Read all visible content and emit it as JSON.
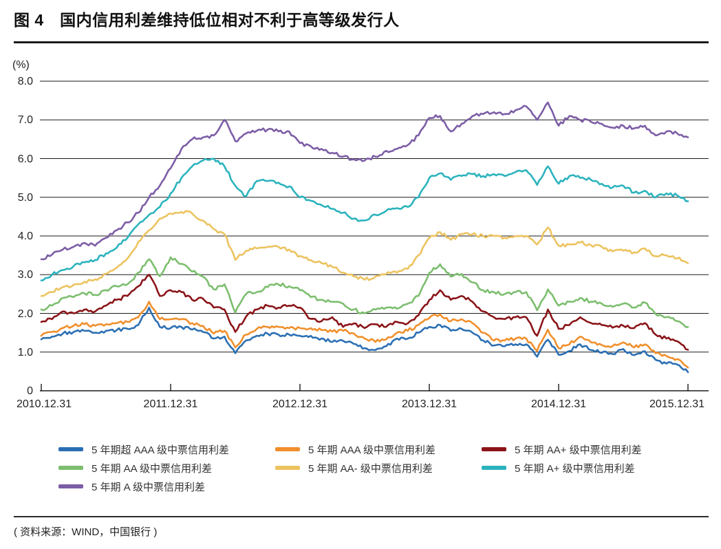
{
  "title": "图 4　国内信用利差维持低位相对不利于高等级发行人",
  "source": "( 资料来源：WIND，中国银行 )",
  "chart_data": {
    "type": "line",
    "title": "图 4　国内信用利差维持低位相对不利于高等级发行人",
    "ylabel": "(%)",
    "xlabel": "",
    "ylim": [
      0,
      8
    ],
    "grid": "horizontal",
    "legend_position": "bottom",
    "yticks": [
      "8.0",
      "7.0",
      "6.0",
      "5.0",
      "4.0",
      "3.0",
      "2.0",
      "1.0",
      "0"
    ],
    "ytick_values": [
      8,
      7,
      6,
      5,
      4,
      3,
      2,
      1,
      0
    ],
    "xtick_labels": [
      "2010.12.31",
      "2011.12.31",
      "2012.12.31",
      "2013.12.31",
      "2014.12.31",
      "2015.12.31"
    ],
    "x_tick_indices": [
      0,
      12,
      24,
      36,
      48,
      60
    ],
    "x_note": "monthly samples from 2010.12.31 to 2015.12.31",
    "legend_rows": [
      [
        0,
        1,
        2
      ],
      [
        3,
        4,
        5
      ],
      [
        6
      ]
    ],
    "series": [
      {
        "name": "5 年期超 AAA 级中票信用利差",
        "color": "#2B6FB3",
        "values": [
          1.33,
          1.4,
          1.48,
          1.52,
          1.55,
          1.5,
          1.55,
          1.57,
          1.6,
          1.7,
          2.15,
          1.65,
          1.62,
          1.65,
          1.58,
          1.52,
          1.35,
          1.4,
          0.97,
          1.3,
          1.42,
          1.48,
          1.45,
          1.45,
          1.42,
          1.42,
          1.35,
          1.26,
          1.29,
          1.21,
          1.1,
          1.05,
          1.15,
          1.35,
          1.35,
          1.5,
          1.65,
          1.7,
          1.55,
          1.6,
          1.5,
          1.3,
          1.17,
          1.15,
          1.2,
          1.2,
          0.88,
          1.32,
          0.93,
          1.03,
          1.2,
          1.05,
          0.98,
          0.95,
          1.08,
          0.92,
          1.02,
          0.8,
          0.7,
          0.68,
          0.48
        ]
      },
      {
        "name": "5 年期 AAA 级中票信用利差",
        "color": "#F08F2C",
        "values": [
          1.42,
          1.52,
          1.62,
          1.68,
          1.72,
          1.68,
          1.72,
          1.75,
          1.78,
          1.9,
          2.3,
          1.85,
          1.85,
          1.85,
          1.75,
          1.68,
          1.48,
          1.55,
          1.12,
          1.45,
          1.6,
          1.65,
          1.65,
          1.62,
          1.62,
          1.62,
          1.57,
          1.53,
          1.55,
          1.48,
          1.35,
          1.26,
          1.33,
          1.5,
          1.55,
          1.7,
          1.88,
          1.98,
          1.8,
          1.85,
          1.75,
          1.5,
          1.3,
          1.3,
          1.35,
          1.35,
          1.03,
          1.58,
          1.1,
          1.2,
          1.4,
          1.25,
          1.18,
          1.15,
          1.25,
          1.12,
          1.2,
          0.97,
          0.9,
          0.82,
          0.6
        ]
      },
      {
        "name": "5 年期 AA+ 级中票信用利差",
        "color": "#8A1418",
        "values": [
          1.78,
          1.85,
          2.05,
          2.0,
          2.1,
          2.05,
          2.2,
          2.35,
          2.45,
          2.7,
          3.0,
          2.45,
          2.6,
          2.55,
          2.35,
          2.38,
          2.15,
          2.1,
          1.52,
          1.92,
          2.1,
          2.2,
          2.15,
          2.2,
          2.15,
          1.86,
          1.8,
          1.9,
          1.65,
          1.74,
          1.62,
          1.72,
          1.65,
          1.78,
          1.74,
          1.95,
          2.35,
          2.6,
          2.35,
          2.45,
          2.3,
          2.05,
          1.9,
          1.85,
          1.9,
          1.9,
          1.42,
          2.1,
          1.6,
          1.7,
          1.9,
          1.75,
          1.7,
          1.63,
          1.68,
          1.62,
          1.75,
          1.45,
          1.35,
          1.28,
          1.06
        ]
      },
      {
        "name": "5 年期 AA 级中票信用利差",
        "color": "#7CBE6E",
        "values": [
          2.1,
          2.2,
          2.4,
          2.42,
          2.52,
          2.48,
          2.6,
          2.7,
          2.75,
          3.05,
          3.4,
          2.96,
          3.45,
          3.28,
          3.08,
          2.95,
          2.62,
          2.75,
          2.02,
          2.5,
          2.55,
          2.68,
          2.75,
          2.7,
          2.6,
          2.42,
          2.35,
          2.3,
          2.25,
          2.1,
          2.0,
          2.1,
          2.15,
          2.12,
          2.25,
          2.45,
          3.05,
          3.27,
          2.95,
          3.02,
          2.8,
          2.6,
          2.55,
          2.5,
          2.55,
          2.55,
          2.08,
          2.62,
          2.2,
          2.3,
          2.4,
          2.3,
          2.25,
          2.17,
          2.25,
          2.15,
          2.28,
          1.98,
          1.9,
          1.8,
          1.65
        ]
      },
      {
        "name": "5 年期 AA- 级中票信用利差",
        "color": "#ECC35F",
        "values": [
          2.45,
          2.55,
          2.68,
          2.74,
          2.82,
          2.88,
          3.02,
          3.18,
          3.42,
          3.85,
          4.15,
          4.45,
          4.58,
          4.62,
          4.58,
          4.4,
          4.18,
          4.05,
          3.38,
          3.62,
          3.68,
          3.72,
          3.72,
          3.65,
          3.48,
          3.38,
          3.3,
          3.2,
          3.05,
          2.95,
          2.87,
          2.95,
          3.02,
          3.05,
          3.15,
          3.5,
          3.95,
          4.1,
          3.9,
          4.05,
          4.05,
          4.0,
          4.0,
          3.95,
          4.0,
          4.0,
          3.78,
          4.22,
          3.75,
          3.78,
          3.83,
          3.76,
          3.72,
          3.6,
          3.62,
          3.58,
          3.68,
          3.48,
          3.5,
          3.42,
          3.3
        ]
      },
      {
        "name": "5 年期 A+ 级中票信用利差",
        "color": "#2BB3BD",
        "values": [
          2.85,
          3.0,
          3.12,
          3.22,
          3.32,
          3.38,
          3.55,
          3.7,
          3.95,
          4.3,
          4.55,
          4.75,
          5.1,
          5.5,
          5.8,
          5.95,
          6.0,
          5.8,
          5.3,
          5.02,
          5.42,
          5.42,
          5.38,
          5.28,
          5.0,
          4.91,
          4.8,
          4.7,
          4.6,
          4.45,
          4.4,
          4.55,
          4.65,
          4.72,
          4.75,
          5.0,
          5.5,
          5.62,
          5.45,
          5.55,
          5.6,
          5.55,
          5.6,
          5.55,
          5.65,
          5.7,
          5.32,
          5.8,
          5.35,
          5.55,
          5.5,
          5.45,
          5.35,
          5.25,
          5.3,
          5.12,
          5.17,
          5.0,
          5.1,
          5.05,
          4.9
        ]
      },
      {
        "name": "5 年期 A 级中票信用利差",
        "color": "#7C5DA6",
        "values": [
          3.4,
          3.52,
          3.65,
          3.72,
          3.82,
          3.75,
          3.95,
          4.15,
          4.35,
          4.6,
          5.0,
          5.3,
          5.75,
          6.25,
          6.5,
          6.55,
          6.6,
          7.0,
          6.45,
          6.65,
          6.72,
          6.75,
          6.7,
          6.7,
          6.4,
          6.32,
          6.25,
          6.15,
          6.05,
          5.98,
          5.95,
          6.05,
          6.2,
          6.25,
          6.35,
          6.6,
          7.05,
          7.1,
          6.7,
          6.9,
          7.1,
          7.15,
          7.2,
          7.15,
          7.25,
          7.35,
          7.0,
          7.45,
          6.85,
          7.1,
          7.0,
          6.95,
          6.9,
          6.8,
          6.85,
          6.78,
          6.85,
          6.6,
          6.7,
          6.65,
          6.55
        ]
      }
    ]
  }
}
